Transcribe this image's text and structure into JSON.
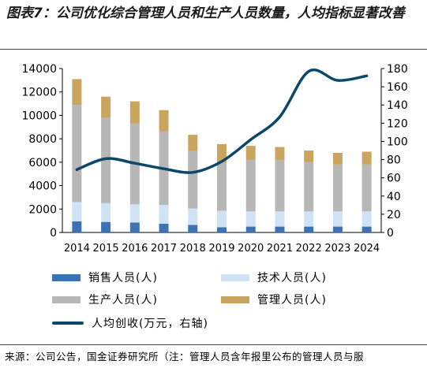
{
  "title": "图表7：公司优化综合管理人员和生产人员数量，人均指标显著改善",
  "source": "来源：公司公告，国金证券研究所（注：管理人员含年报里公布的管理人员与服",
  "chart_data": {
    "type": "bar",
    "stacked": true,
    "categories": [
      "2014",
      "2015",
      "2016",
      "2017",
      "2018",
      "2019",
      "2020",
      "2021",
      "2022",
      "2023",
      "2024"
    ],
    "series": [
      {
        "name": "销售人员(人)",
        "color": "#3d72b4",
        "values": [
          950,
          900,
          850,
          750,
          650,
          450,
          500,
          500,
          500,
          500,
          500
        ]
      },
      {
        "name": "技术人员(人)",
        "color": "#cfe3f5",
        "values": [
          1650,
          1600,
          1550,
          1600,
          1400,
          1400,
          1300,
          1300,
          1300,
          1300,
          1300
        ]
      },
      {
        "name": "生产人员(人)",
        "color": "#b7b7b7",
        "values": [
          8300,
          7300,
          6900,
          6300,
          4900,
          4100,
          4400,
          4400,
          4200,
          4000,
          4000
        ]
      },
      {
        "name": "管理人员(人)",
        "color": "#c9a55f",
        "values": [
          2200,
          1800,
          1900,
          1800,
          1400,
          1600,
          1200,
          1100,
          1000,
          1000,
          1100
        ]
      }
    ],
    "line_series": {
      "name": "人均创收(万元，右轴)",
      "color": "#0d4769",
      "values": [
        69,
        81,
        76,
        70,
        66,
        78,
        102,
        127,
        177,
        167,
        172
      ]
    },
    "ylim_left": [
      0,
      14000
    ],
    "yticks_left": [
      0,
      2000,
      4000,
      6000,
      8000,
      10000,
      12000,
      14000
    ],
    "ylim_right": [
      0,
      180
    ],
    "yticks_right": [
      0,
      20,
      40,
      60,
      80,
      100,
      120,
      140,
      160,
      180
    ],
    "grid": false,
    "legend_placement": "bottom"
  }
}
